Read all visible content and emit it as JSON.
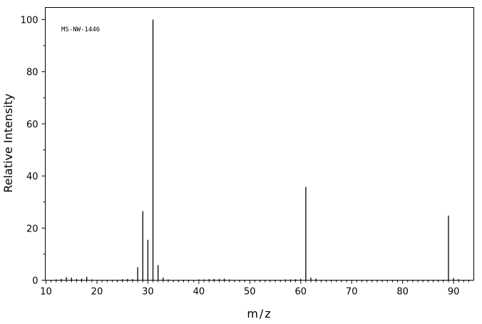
{
  "chart_data": {
    "type": "bar",
    "annotation": "MS-NW-1446",
    "xlabel": "m/z",
    "ylabel": "Relative Intensity",
    "xlim": [
      10,
      94
    ],
    "ylim": [
      0,
      105
    ],
    "x_ticks": [
      10,
      20,
      30,
      40,
      50,
      60,
      70,
      80,
      90
    ],
    "y_ticks": [
      0,
      20,
      40,
      60,
      80,
      100
    ],
    "grid": false,
    "peaks": [
      {
        "mz": 12,
        "intensity": 0.3
      },
      {
        "mz": 13,
        "intensity": 0.5
      },
      {
        "mz": 14,
        "intensity": 1.2
      },
      {
        "mz": 15,
        "intensity": 1.0
      },
      {
        "mz": 16,
        "intensity": 0.5
      },
      {
        "mz": 17,
        "intensity": 0.6
      },
      {
        "mz": 18,
        "intensity": 1.3
      },
      {
        "mz": 19,
        "intensity": 0.3
      },
      {
        "mz": 24,
        "intensity": 0.2
      },
      {
        "mz": 25,
        "intensity": 0.4
      },
      {
        "mz": 26,
        "intensity": 0.5
      },
      {
        "mz": 27,
        "intensity": 0.4
      },
      {
        "mz": 28,
        "intensity": 5.0
      },
      {
        "mz": 29,
        "intensity": 26.5
      },
      {
        "mz": 30,
        "intensity": 15.5
      },
      {
        "mz": 31,
        "intensity": 100
      },
      {
        "mz": 32,
        "intensity": 5.8
      },
      {
        "mz": 33,
        "intensity": 1.0
      },
      {
        "mz": 34,
        "intensity": 0.3
      },
      {
        "mz": 40,
        "intensity": 0.3
      },
      {
        "mz": 41,
        "intensity": 0.3
      },
      {
        "mz": 42,
        "intensity": 0.4
      },
      {
        "mz": 43,
        "intensity": 0.5
      },
      {
        "mz": 44,
        "intensity": 0.5
      },
      {
        "mz": 45,
        "intensity": 0.6
      },
      {
        "mz": 46,
        "intensity": 0.3
      },
      {
        "mz": 57,
        "intensity": 0.3
      },
      {
        "mz": 58,
        "intensity": 0.3
      },
      {
        "mz": 59,
        "intensity": 0.4
      },
      {
        "mz": 60,
        "intensity": 0.5
      },
      {
        "mz": 61,
        "intensity": 35.8
      },
      {
        "mz": 62,
        "intensity": 1.0
      },
      {
        "mz": 63,
        "intensity": 0.6
      },
      {
        "mz": 88,
        "intensity": 0.2
      },
      {
        "mz": 89,
        "intensity": 24.8
      },
      {
        "mz": 90,
        "intensity": 0.8
      },
      {
        "mz": 91,
        "intensity": 0.4
      }
    ]
  }
}
